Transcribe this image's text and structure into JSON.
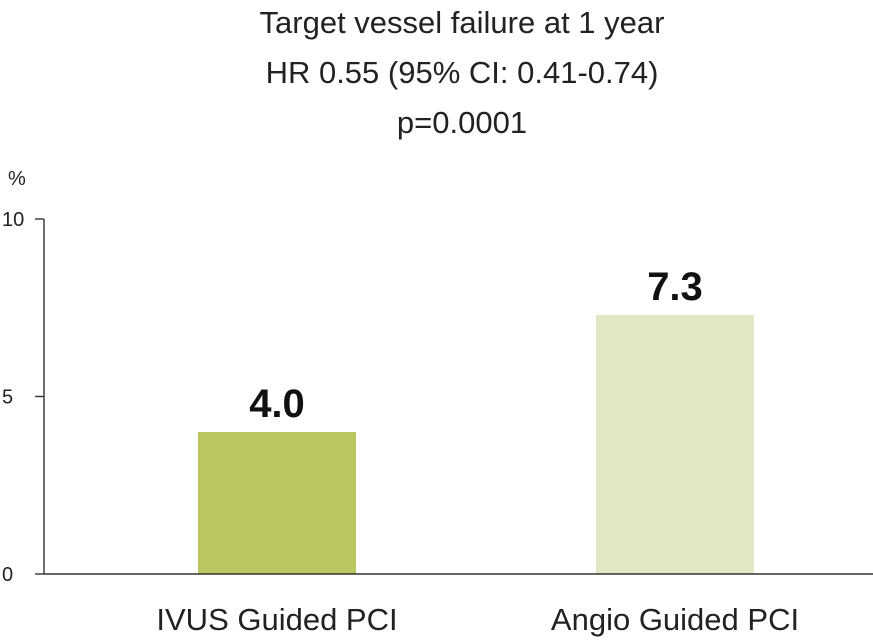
{
  "chart_data": {
    "type": "bar",
    "title_lines": [
      "Target vessel failure at 1 year",
      "HR 0.55 (95% CI: 0.41-0.74)",
      "p=0.0001"
    ],
    "ylabel": "%",
    "xlabel": "",
    "ylim": [
      0,
      10
    ],
    "yticks": [
      0,
      5,
      10
    ],
    "categories": [
      "IVUS Guided PCI",
      "Angio Guided PCI"
    ],
    "values": [
      4.0,
      7.3
    ],
    "data_labels": [
      "4.0",
      "7.3"
    ],
    "colors": [
      "#bcc660",
      "#e1e7c4"
    ],
    "grid": false,
    "legend": "none"
  }
}
